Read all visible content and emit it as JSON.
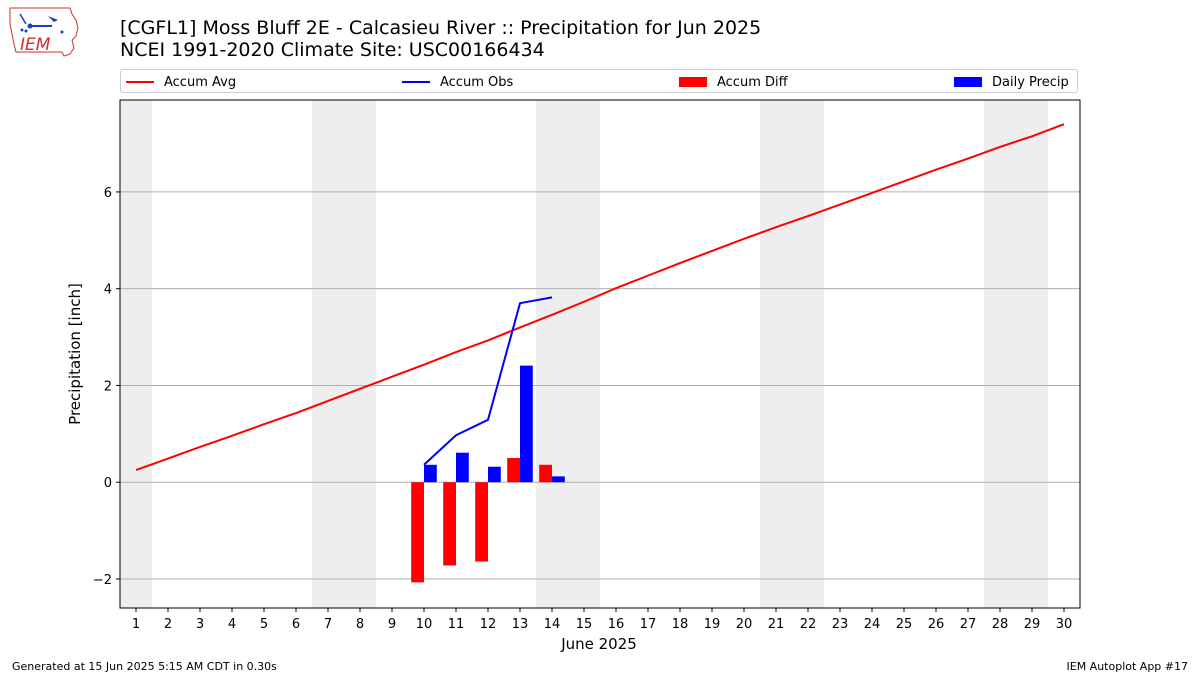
{
  "header": {
    "title_line1": "[CGFL1] Moss Bluff 2E - Calcasieu River :: Precipitation for Jun 2025",
    "title_line2": "NCEI 1991-2020 Climate Site: USC00166434",
    "logo_text": "IEM"
  },
  "legend": {
    "items": [
      {
        "label": "Accum Avg",
        "kind": "line",
        "color": "#ff0000"
      },
      {
        "label": "Accum Obs",
        "kind": "line",
        "color": "#0000ff"
      },
      {
        "label": "Accum Diff",
        "kind": "patch",
        "color": "#ff0000"
      },
      {
        "label": "Daily Precip",
        "kind": "patch",
        "color": "#0000ff"
      }
    ]
  },
  "footer": {
    "left": "Generated at 15 Jun 2025 5:15 AM CDT in 0.30s",
    "right": "IEM Autoplot App #17"
  },
  "chart_data": {
    "type": "bar",
    "xlabel": "June 2025",
    "ylabel": "Precipitation [inch]",
    "xlim": [
      0.5,
      30.5
    ],
    "ylim": [
      -2.6,
      7.9
    ],
    "yticks": [
      -2,
      0,
      2,
      4,
      6
    ],
    "ytick_labels": [
      "−2",
      "0",
      "2",
      "4",
      "6"
    ],
    "x": [
      1,
      2,
      3,
      4,
      5,
      6,
      7,
      8,
      9,
      10,
      11,
      12,
      13,
      14,
      15,
      16,
      17,
      18,
      19,
      20,
      21,
      22,
      23,
      24,
      25,
      26,
      27,
      28,
      29,
      30
    ],
    "grid": "horizontal",
    "weekend_shading": [
      [
        0.5,
        1.5
      ],
      [
        6.5,
        8.5
      ],
      [
        13.5,
        15.5
      ],
      [
        20.5,
        22.5
      ],
      [
        27.5,
        29.5
      ]
    ],
    "shading_color": "#eeeeee",
    "series": [
      {
        "name": "Accum Avg",
        "type": "line",
        "color": "#ff0000",
        "x": [
          1,
          2,
          3,
          4,
          5,
          6,
          7,
          8,
          9,
          10,
          11,
          12,
          13,
          14,
          15,
          16,
          17,
          18,
          19,
          20,
          21,
          22,
          23,
          24,
          25,
          26,
          27,
          28,
          29,
          30
        ],
        "values": [
          0.25,
          0.49,
          0.73,
          0.96,
          1.2,
          1.43,
          1.68,
          1.93,
          2.18,
          2.43,
          2.69,
          2.93,
          3.2,
          3.46,
          3.73,
          4.01,
          4.27,
          4.53,
          4.78,
          5.03,
          5.27,
          5.5,
          5.74,
          5.98,
          6.22,
          6.46,
          6.69,
          6.93,
          7.15,
          7.4
        ]
      },
      {
        "name": "Accum Obs",
        "type": "line",
        "color": "#0000ff",
        "x": [
          10,
          11,
          12,
          13,
          14
        ],
        "values": [
          0.36,
          0.97,
          1.29,
          3.7,
          3.82
        ]
      },
      {
        "name": "Accum Diff",
        "type": "bar",
        "color": "#ff0000",
        "offset": -0.2,
        "x": [
          10,
          11,
          12,
          13,
          14
        ],
        "values": [
          -2.07,
          -1.72,
          -1.64,
          0.5,
          0.36
        ]
      },
      {
        "name": "Daily Precip",
        "type": "bar",
        "color": "#0000ff",
        "offset": 0.2,
        "x": [
          10,
          11,
          12,
          13,
          14
        ],
        "values": [
          0.36,
          0.61,
          0.32,
          2.41,
          0.12
        ]
      }
    ]
  }
}
